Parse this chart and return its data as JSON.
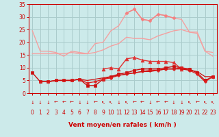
{
  "x": [
    0,
    1,
    2,
    3,
    4,
    5,
    6,
    7,
    8,
    9,
    10,
    11,
    12,
    13,
    14,
    15,
    16,
    17,
    18,
    19,
    20,
    21,
    22,
    23
  ],
  "series": [
    {
      "name": "rafales_light_top",
      "color": "#f4a0a0",
      "linewidth": 1.0,
      "marker": null,
      "markersize": 0,
      "y": [
        24.5,
        16.5,
        16.5,
        16.0,
        14.5,
        16.5,
        16.0,
        15.5,
        19.5,
        20.0,
        24.5,
        26.5,
        31.5,
        33.0,
        29.0,
        28.5,
        31.0,
        30.5,
        29.5,
        29.0,
        24.0,
        24.0,
        16.5,
        14.5
      ]
    },
    {
      "name": "mean_light_upper",
      "color": "#f4a0a0",
      "linewidth": 1.0,
      "marker": null,
      "markersize": 0,
      "y": [
        15.5,
        15.5,
        15.5,
        15.5,
        15.5,
        16.0,
        15.5,
        15.5,
        16.0,
        17.0,
        18.5,
        19.5,
        22.0,
        21.5,
        21.5,
        21.0,
        22.5,
        23.5,
        24.5,
        25.0,
        24.0,
        23.5,
        16.5,
        16.0
      ]
    },
    {
      "name": "rafales_pink_marker",
      "color": "#f48080",
      "linewidth": 1.0,
      "marker": "D",
      "markersize": 2.5,
      "y": [
        null,
        null,
        null,
        null,
        null,
        null,
        null,
        null,
        null,
        null,
        null,
        null,
        31.5,
        33.0,
        29.0,
        28.5,
        31.0,
        30.5,
        29.5,
        null,
        null,
        null,
        null,
        null
      ]
    },
    {
      "name": "mean_triangle",
      "color": "#e03030",
      "linewidth": 1.0,
      "marker": "^",
      "markersize": 3.5,
      "y": [
        null,
        null,
        null,
        null,
        null,
        null,
        null,
        null,
        null,
        9.5,
        10.0,
        9.5,
        13.5,
        14.0,
        13.0,
        12.5,
        12.5,
        12.5,
        12.0,
        9.5,
        9.5,
        null,
        null,
        null
      ]
    },
    {
      "name": "mean_sq",
      "color": "#cc1010",
      "linewidth": 1.0,
      "marker": "s",
      "markersize": 2.5,
      "y": [
        8.0,
        4.5,
        4.5,
        5.0,
        5.0,
        5.0,
        5.5,
        3.0,
        3.0,
        5.5,
        6.5,
        7.5,
        8.0,
        9.0,
        9.5,
        9.5,
        9.5,
        10.0,
        10.5,
        10.0,
        9.5,
        8.0,
        5.0,
        6.5
      ]
    },
    {
      "name": "mean_circ",
      "color": "#dd2020",
      "linewidth": 1.0,
      "marker": "o",
      "markersize": 2.5,
      "y": [
        null,
        4.5,
        4.5,
        5.0,
        5.0,
        5.0,
        5.5,
        4.0,
        4.5,
        5.5,
        6.0,
        7.0,
        7.5,
        8.0,
        8.5,
        9.0,
        9.0,
        9.5,
        9.5,
        10.0,
        9.0,
        7.5,
        4.5,
        6.5
      ]
    },
    {
      "name": "flat_trend",
      "color": "#cc1010",
      "linewidth": 0.9,
      "marker": null,
      "markersize": 0,
      "y": [
        null,
        4.5,
        4.5,
        5.0,
        5.0,
        5.0,
        5.5,
        5.0,
        5.5,
        6.0,
        6.5,
        7.0,
        7.5,
        8.0,
        8.5,
        8.5,
        9.0,
        9.5,
        9.5,
        9.5,
        9.0,
        8.5,
        6.5,
        6.5
      ]
    }
  ],
  "wind_dirs": [
    "↓",
    "↓",
    "↓",
    "←",
    "←",
    "←",
    "↓",
    "↓",
    "←",
    "↖",
    "↖",
    "↓",
    "↖",
    "←",
    "←",
    "↓",
    "←",
    "←",
    "↓",
    "↓",
    "↖",
    "←",
    "↖",
    "↖"
  ],
  "xlim": [
    -0.5,
    23.5
  ],
  "ylim": [
    0,
    35
  ],
  "yticks": [
    0,
    5,
    10,
    15,
    20,
    25,
    30,
    35
  ],
  "xticks": [
    0,
    1,
    2,
    3,
    4,
    5,
    6,
    7,
    8,
    9,
    10,
    11,
    12,
    13,
    14,
    15,
    16,
    17,
    18,
    19,
    20,
    21,
    22,
    23
  ],
  "xlabel": "Vent moyen/en rafales ( km/h )",
  "bg_color": "#cceaea",
  "grid_color": "#aacccc",
  "tick_color": "#cc0000",
  "label_color": "#cc0000"
}
